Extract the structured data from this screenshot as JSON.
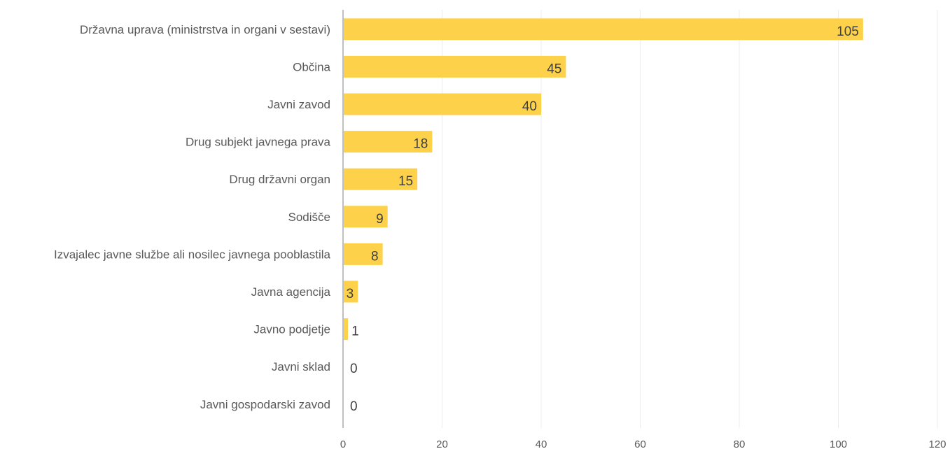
{
  "chart_data": {
    "type": "bar",
    "orientation": "horizontal",
    "title": "",
    "xlabel": "",
    "ylabel": "",
    "categories": [
      "Državna uprava (ministrstva in organi v sestavi)",
      "Občina",
      "Javni zavod",
      "Drug subjekt javnega prava",
      "Drug državni organ",
      "Sodišče",
      "Izvajalec javne službe ali nosilec javnega pooblastila",
      "Javna agencija",
      "Javno podjetje",
      "Javni sklad",
      "Javni gospodarski zavod"
    ],
    "values": [
      105,
      45,
      40,
      18,
      15,
      9,
      8,
      3,
      1,
      0,
      0
    ],
    "xlim": [
      0,
      120
    ],
    "xticks": [
      0,
      20,
      40,
      60,
      80,
      100,
      120
    ],
    "grid": true,
    "legend": "none",
    "bar_color": "#fdd24a",
    "grid_color": "#ececec",
    "axis_color": "#bfbfbf",
    "label_color": "#595959",
    "data_label_color": "#404040"
  }
}
